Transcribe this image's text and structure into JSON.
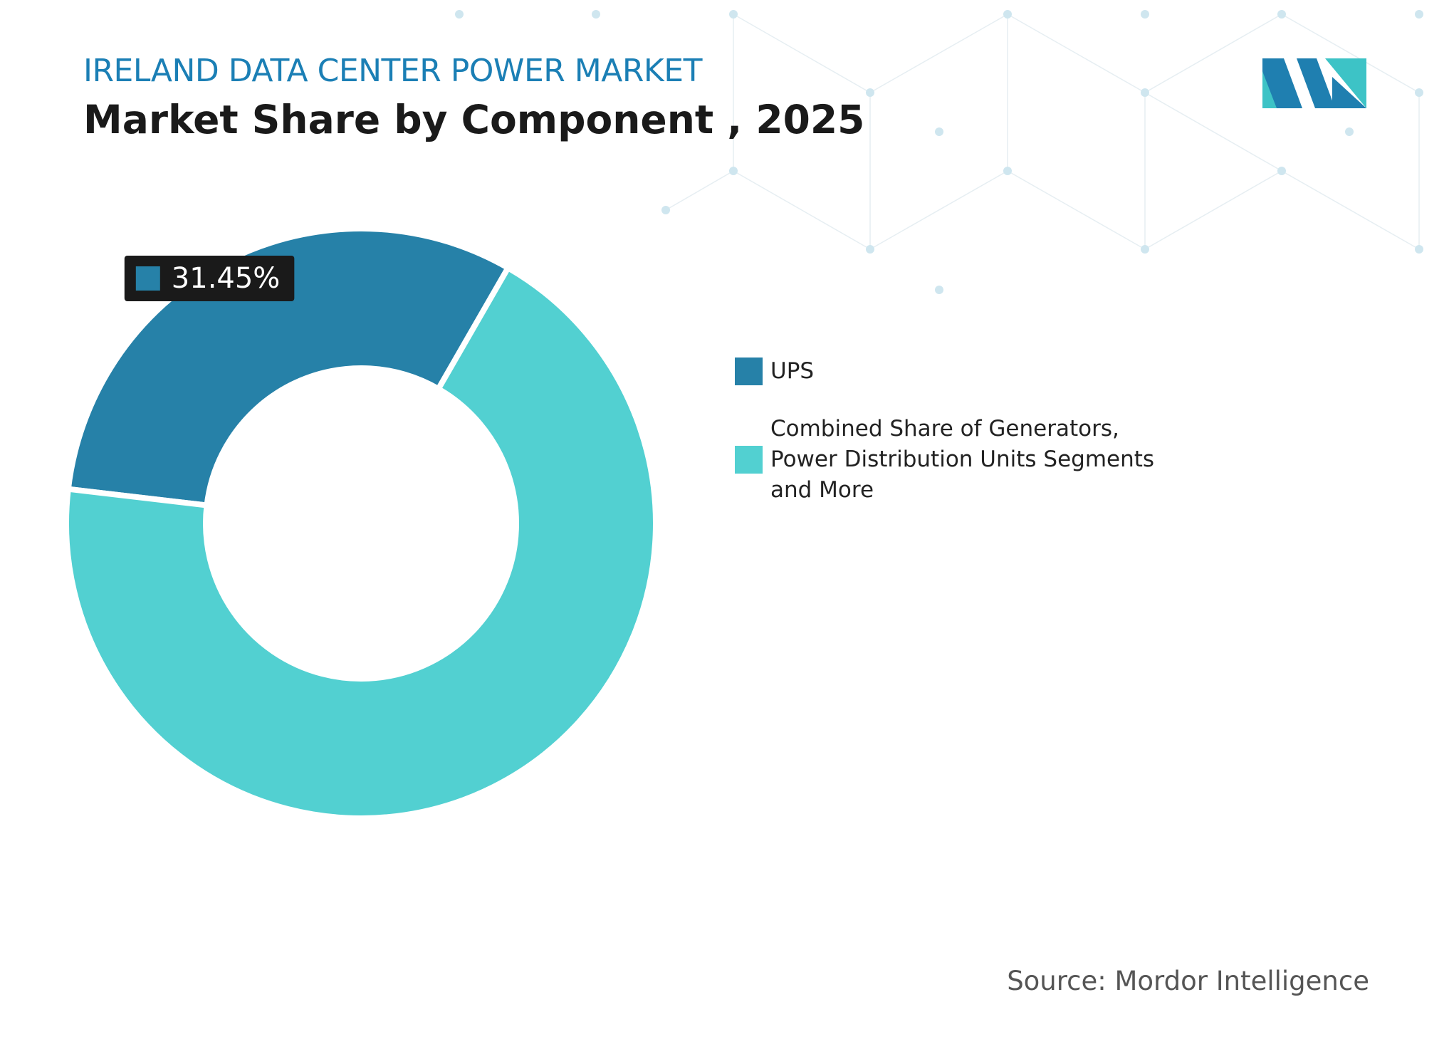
{
  "chart_data": {
    "type": "donut",
    "title": "IRELAND DATA CENTER POWER MARKET",
    "subtitle": "Market Share by Component , 2025",
    "categories": [
      "UPS",
      "Combined Share of Generators, Power Distribution Units Segments and More"
    ],
    "values": [
      31.45,
      68.55
    ],
    "value_labels": [
      "31.45%",
      null
    ],
    "colors": [
      "#2681a8",
      "#52d0d1"
    ]
  },
  "source": "Source: Mordor Intelligence"
}
